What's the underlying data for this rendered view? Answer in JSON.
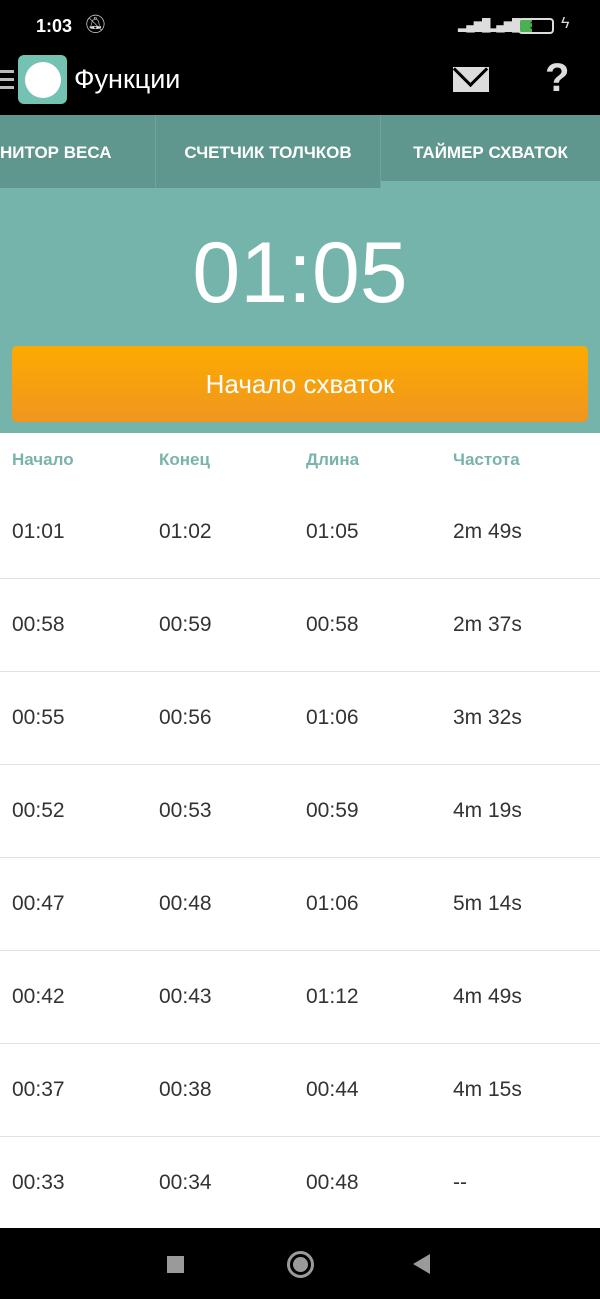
{
  "status_bar": {
    "time": "1:03",
    "battery": "37",
    "battery_percent": 37,
    "icons": [
      "bell-off-icon",
      "signal-icon",
      "signal-icon",
      "battery-icon",
      "charging-icon"
    ]
  },
  "app_bar": {
    "title": "Функции",
    "icons": [
      "menu-icon",
      "app-logo",
      "mail-icon",
      "help-icon"
    ]
  },
  "tabs": [
    {
      "label": "НИТОР ВЕСА"
    },
    {
      "label": "СЧЕТЧИК ТОЛЧКОВ"
    },
    {
      "label": "ТАЙМЕР СХВАТОК",
      "selected": true
    }
  ],
  "timer": {
    "value": "01:05",
    "button_label": "Начало схваток"
  },
  "colors": {
    "accent": "#74b4aa",
    "tabs": "#5f968e",
    "button": "#fdaa00",
    "header_text": "#79b3a9"
  },
  "table": {
    "columns": [
      "Начало",
      "Конец",
      "Длина",
      "Частота"
    ],
    "rows": [
      [
        "01:01",
        "01:02",
        "01:05",
        "2m 49s"
      ],
      [
        "00:58",
        "00:59",
        "00:58",
        "2m 37s"
      ],
      [
        "00:55",
        "00:56",
        "01:06",
        "3m 32s"
      ],
      [
        "00:52",
        "00:53",
        "00:59",
        "4m 19s"
      ],
      [
        "00:47",
        "00:48",
        "01:06",
        "5m 14s"
      ],
      [
        "00:42",
        "00:43",
        "01:12",
        "4m 49s"
      ],
      [
        "00:37",
        "00:38",
        "00:44",
        "4m 15s"
      ],
      [
        "00:33",
        "00:34",
        "00:48",
        "--"
      ]
    ]
  }
}
